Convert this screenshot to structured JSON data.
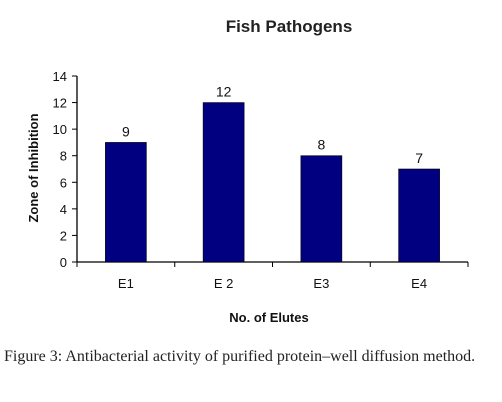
{
  "chart_data": {
    "type": "bar",
    "title": "Fish Pathogens",
    "xlabel": "No. of Elutes",
    "ylabel": "Zone of Inhibition",
    "categories": [
      "E1",
      "E 2",
      "E3",
      "E4"
    ],
    "values": [
      9,
      12,
      8,
      7
    ],
    "ylim": [
      0,
      14
    ],
    "yticks": [
      0,
      2,
      4,
      6,
      8,
      10,
      12,
      14
    ],
    "bar_color": "#000080",
    "grid": false,
    "legend": "none"
  },
  "caption": "Figure 3: Antibacterial activity of purified protein–well diffusion method."
}
